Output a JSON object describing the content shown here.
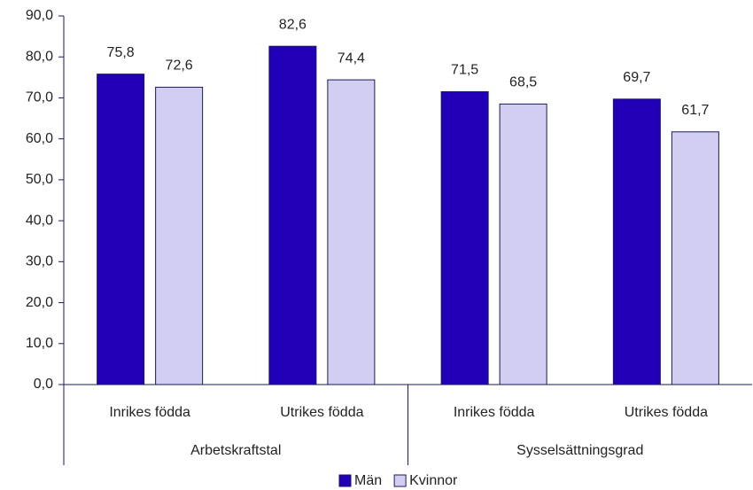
{
  "chart_data": {
    "type": "bar",
    "category_groups": [
      {
        "name": "Arbetskraftstal",
        "categories": [
          "Inrikes födda",
          "Utrikes födda"
        ]
      },
      {
        "name": "Sysselsättningsgrad",
        "categories": [
          "Inrikes födda",
          "Utrikes födda"
        ]
      }
    ],
    "series": [
      {
        "name": "Män",
        "color": "#2200b8",
        "values": [
          75.8,
          82.6,
          71.5,
          69.7
        ],
        "value_labels": [
          "75,8",
          "82,6",
          "71,5",
          "69,7"
        ]
      },
      {
        "name": "Kvinnor",
        "color": "#d2cef2",
        "values": [
          72.6,
          74.4,
          68.5,
          61.7
        ],
        "value_labels": [
          "72,6",
          "74,4",
          "68,5",
          "61,7"
        ]
      }
    ],
    "ylim": [
      0,
      90
    ],
    "yticks": [
      {
        "value": 0,
        "label": "0,0"
      },
      {
        "value": 10,
        "label": "10,0"
      },
      {
        "value": 20,
        "label": "20,0"
      },
      {
        "value": 30,
        "label": "30,0"
      },
      {
        "value": 40,
        "label": "40,0"
      },
      {
        "value": 50,
        "label": "50,0"
      },
      {
        "value": 60,
        "label": "60,0"
      },
      {
        "value": 70,
        "label": "70,0"
      },
      {
        "value": 80,
        "label": "80,0"
      },
      {
        "value": 90,
        "label": "90,0"
      }
    ],
    "grid": false,
    "legend": "bottom"
  }
}
